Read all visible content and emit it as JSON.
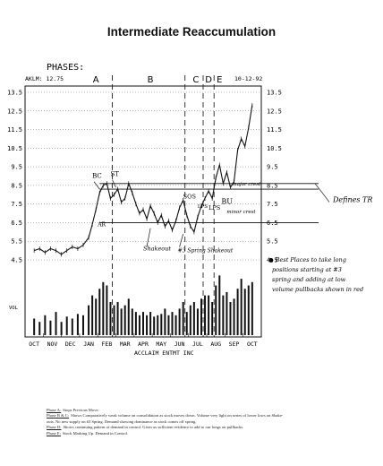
{
  "title": "Intermediate Reaccumulation",
  "header": {
    "phases_label": "PHASES:",
    "ticker": "AKLM: 12.75",
    "date": "10-12-92"
  },
  "phases": [
    {
      "label": "A",
      "x": "Jan"
    },
    {
      "label": "B",
      "x": "Apr"
    },
    {
      "label": "C",
      "x": "Jul"
    },
    {
      "label": "D",
      "x": "Jul-late"
    },
    {
      "label": "E",
      "x": "Aug"
    }
  ],
  "chart_data": {
    "type": "line",
    "title": "Intermediate Reaccumulation",
    "xlabel": "ACCLAIM ENTMT INC",
    "ylabel": "",
    "categories": [
      "OCT",
      "NOV",
      "DEC",
      "JAN",
      "FEB",
      "MAR",
      "APR",
      "MAY",
      "JUN",
      "JUL",
      "AUG",
      "SEP",
      "OCT"
    ],
    "ylim": [
      4.5,
      13.5
    ],
    "yticks_left": [
      "13.5",
      "12.5",
      "11.5",
      "10.5",
      "9.5",
      "8.5",
      "7.5",
      "6.5",
      "5.5",
      "4.5"
    ],
    "yticks_right": [
      "13.5",
      "12.5",
      "11.5",
      "10.5",
      "9.5",
      "8.5",
      "7.5",
      "6.5",
      "5.5",
      "4.5"
    ],
    "volume_label": "VOL",
    "grid": true,
    "series": [
      {
        "x": [
          0,
          0.3,
          0.6,
          0.9,
          1.2,
          1.5,
          1.8,
          2.1,
          2.4,
          2.7,
          3.0,
          3.2,
          3.4,
          3.6,
          3.8,
          4.0,
          4.2,
          4.4,
          4.6,
          4.8,
          5.0,
          5.2,
          5.4,
          5.6,
          5.8,
          6.0,
          6.2,
          6.4,
          6.6,
          6.8,
          7.0,
          7.2,
          7.4,
          7.6,
          7.8,
          8.0,
          8.2,
          8.4,
          8.6,
          8.8,
          9.0,
          9.2,
          9.4,
          9.6,
          9.8,
          10.0,
          10.2,
          10.4,
          10.6,
          10.8,
          11.0,
          11.2,
          11.4,
          11.6,
          11.8,
          12.0
        ],
        "values": [
          5.0,
          5.1,
          4.9,
          5.1,
          5.0,
          4.8,
          5.0,
          5.2,
          5.1,
          5.3,
          5.7,
          6.4,
          7.2,
          8.1,
          8.5,
          8.6,
          7.8,
          8.0,
          8.3,
          7.6,
          7.8,
          8.6,
          8.1,
          7.5,
          7.0,
          7.2,
          6.7,
          7.4,
          7.0,
          6.5,
          6.9,
          6.3,
          6.6,
          6.1,
          6.6,
          7.3,
          7.7,
          6.9,
          6.3,
          6.0,
          6.8,
          7.4,
          7.8,
          8.2,
          7.8,
          8.9,
          9.6,
          8.6,
          9.2,
          8.4,
          8.7,
          10.4,
          11.0,
          10.6,
          11.6,
          12.8
        ]
      }
    ],
    "volume": [
      0.25,
      0.2,
      0.3,
      0.22,
      0.35,
      0.2,
      0.28,
      0.25,
      0.32,
      0.3,
      0.45,
      0.6,
      0.55,
      0.7,
      0.8,
      0.75,
      0.5,
      0.45,
      0.5,
      0.4,
      0.45,
      0.55,
      0.4,
      0.35,
      0.3,
      0.35,
      0.3,
      0.35,
      0.28,
      0.3,
      0.32,
      0.4,
      0.3,
      0.35,
      0.3,
      0.4,
      0.5,
      0.35,
      0.45,
      0.5,
      0.4,
      0.55,
      0.6,
      0.6,
      0.5,
      0.75,
      0.9,
      0.6,
      0.65,
      0.5,
      0.55,
      0.7,
      0.85,
      0.7,
      0.75,
      0.8
    ]
  },
  "annotations": {
    "bc": "BC",
    "st": "ST",
    "ar": "AR",
    "sos": "SOS",
    "lps": "LPS",
    "bu": "BU",
    "lps2": "LPS",
    "shakeout": "Shakeout",
    "spring": "#3 Spring Shakeout",
    "major_crest": "major crest",
    "minor_crest": "minor crest",
    "defines_tr": "Defines TR",
    "note": "Best Places to take long positions starting at #3 spring and adding at low volume pullbacks shown in red"
  },
  "legend": [
    {
      "key": "Phase A:",
      "text": "Stops Previous Move."
    },
    {
      "key": "Phase B & C:",
      "text": "Shows Comparatively weak volume on consolidation as stock moves down. Volume very light on series of lower lows on Shake-"
    },
    {
      "key": "",
      "text": "outs. No new supply on #3 Spring. Demand showing dominance as stock comes off spring."
    },
    {
      "key": "Phase D:",
      "text": "Shows continuing pattern of demand in control. Gives us sufficient evidence to add to our longs on pullbacks."
    },
    {
      "key": "Phase E:",
      "text": "Stock Marking Up. Demand in Control."
    }
  ]
}
